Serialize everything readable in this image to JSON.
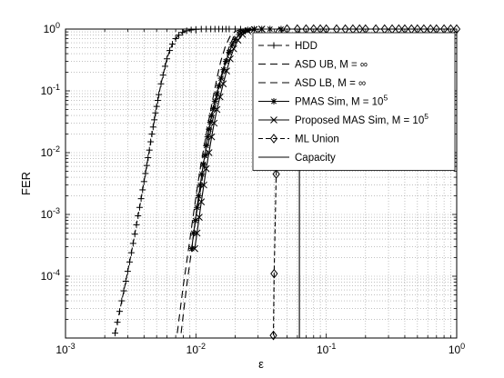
{
  "chart_data": {
    "type": "line",
    "title": "",
    "xlabel": "ε",
    "ylabel": "FER",
    "xscale": "log",
    "yscale": "log",
    "xlim": [
      0.001,
      1
    ],
    "ylim": [
      1e-05,
      1
    ],
    "grid": true,
    "legend_position": "top-right",
    "x_ticks": [
      {
        "value": 0.001,
        "base": "10",
        "exp": "-3"
      },
      {
        "value": 0.01,
        "base": "10",
        "exp": "-2"
      },
      {
        "value": 0.1,
        "base": "10",
        "exp": "-1"
      },
      {
        "value": 1,
        "base": "10",
        "exp": "0"
      }
    ],
    "y_ticks": [
      {
        "value": 0.0001,
        "base": "10",
        "exp": "-4"
      },
      {
        "value": 0.001,
        "base": "10",
        "exp": "-3"
      },
      {
        "value": 0.01,
        "base": "10",
        "exp": "-2"
      },
      {
        "value": 0.1,
        "base": "10",
        "exp": "-1"
      },
      {
        "value": 1,
        "base": "10",
        "exp": "0"
      }
    ],
    "series": [
      {
        "name": "HDD",
        "color": "#000000",
        "dash": "6,4",
        "marker": "plus",
        "points": [
          [
            0.0024,
            1.2e-05
          ],
          [
            0.0025,
            1.8e-05
          ],
          [
            0.0026,
            2.7e-05
          ],
          [
            0.0027,
            4e-05
          ],
          [
            0.0028,
            5.8e-05
          ],
          [
            0.0029,
            8.3e-05
          ],
          [
            0.003,
            0.00012
          ],
          [
            0.0031,
            0.00017
          ],
          [
            0.0032,
            0.00024
          ],
          [
            0.0033,
            0.00034
          ],
          [
            0.0034,
            0.00048
          ],
          [
            0.0035,
            0.00068
          ],
          [
            0.0036,
            0.00095
          ],
          [
            0.0037,
            0.0013
          ],
          [
            0.0038,
            0.0018
          ],
          [
            0.0039,
            0.0025
          ],
          [
            0.004,
            0.0034
          ],
          [
            0.0041,
            0.0046
          ],
          [
            0.0042,
            0.0062
          ],
          [
            0.0043,
            0.0083
          ],
          [
            0.0044,
            0.011
          ],
          [
            0.0045,
            0.015
          ],
          [
            0.0046,
            0.02
          ],
          [
            0.0047,
            0.026
          ],
          [
            0.0048,
            0.034
          ],
          [
            0.0049,
            0.044
          ],
          [
            0.005,
            0.056
          ],
          [
            0.0051,
            0.07
          ],
          [
            0.0052,
            0.087
          ],
          [
            0.0054,
            0.13
          ],
          [
            0.0056,
            0.18
          ],
          [
            0.0058,
            0.25
          ],
          [
            0.006,
            0.33
          ],
          [
            0.0063,
            0.45
          ],
          [
            0.0066,
            0.57
          ],
          [
            0.007,
            0.7
          ],
          [
            0.0074,
            0.8
          ],
          [
            0.0079,
            0.88
          ],
          [
            0.0085,
            0.94
          ],
          [
            0.0092,
            0.97
          ],
          [
            0.01,
            0.99
          ],
          [
            0.011,
            1
          ],
          [
            0.012,
            1
          ],
          [
            0.013,
            1
          ],
          [
            0.014,
            1
          ],
          [
            0.015,
            1
          ],
          [
            0.016,
            1
          ],
          [
            0.017,
            1
          ],
          [
            0.018,
            1
          ],
          [
            0.02,
            1
          ],
          [
            0.022,
            1
          ]
        ]
      },
      {
        "name": "ASD UB, M = ∞",
        "color": "#000000",
        "dash": "8,5",
        "marker": "none",
        "points": [
          [
            0.0072,
            1.2e-05
          ],
          [
            0.0076,
            3e-05
          ],
          [
            0.008,
            7e-05
          ],
          [
            0.0085,
            0.00017
          ],
          [
            0.009,
            0.0004
          ],
          [
            0.0095,
            0.0009
          ],
          [
            0.01,
            0.0019
          ],
          [
            0.0105,
            0.0038
          ],
          [
            0.011,
            0.007
          ],
          [
            0.0118,
            0.016
          ],
          [
            0.0126,
            0.035
          ],
          [
            0.0135,
            0.075
          ],
          [
            0.0145,
            0.16
          ],
          [
            0.0155,
            0.3
          ],
          [
            0.0168,
            0.52
          ],
          [
            0.0182,
            0.75
          ],
          [
            0.02,
            0.92
          ],
          [
            0.022,
            0.98
          ],
          [
            0.025,
            1
          ],
          [
            0.03,
            1
          ]
        ]
      },
      {
        "name": "ASD LB, M = ∞",
        "color": "#000000",
        "dash": "8,5",
        "marker": "none",
        "points": [
          [
            0.0077,
            1.2e-05
          ],
          [
            0.0081,
            3e-05
          ],
          [
            0.0085,
            7e-05
          ],
          [
            0.009,
            0.00017
          ],
          [
            0.0095,
            0.0004
          ],
          [
            0.01,
            0.0009
          ],
          [
            0.0106,
            0.0019
          ],
          [
            0.0112,
            0.0038
          ],
          [
            0.0118,
            0.007
          ],
          [
            0.0126,
            0.016
          ],
          [
            0.0135,
            0.035
          ],
          [
            0.0145,
            0.075
          ],
          [
            0.0155,
            0.16
          ],
          [
            0.0167,
            0.3
          ],
          [
            0.018,
            0.52
          ],
          [
            0.0195,
            0.75
          ],
          [
            0.0213,
            0.92
          ],
          [
            0.0235,
            0.98
          ],
          [
            0.027,
            1
          ],
          [
            0.032,
            1
          ]
        ]
      },
      {
        "name": "PMAS Sim, M = 10",
        "name_exp": "5",
        "color": "#000000",
        "dash": "",
        "marker": "star",
        "points": [
          [
            0.0093,
            0.00028
          ],
          [
            0.0096,
            0.0005
          ],
          [
            0.0099,
            0.0008
          ],
          [
            0.0102,
            0.0013
          ],
          [
            0.0105,
            0.002
          ],
          [
            0.0108,
            0.003
          ],
          [
            0.0111,
            0.0045
          ],
          [
            0.0114,
            0.0065
          ],
          [
            0.0117,
            0.009
          ],
          [
            0.012,
            0.013
          ],
          [
            0.0123,
            0.018
          ],
          [
            0.0126,
            0.024
          ],
          [
            0.0129,
            0.031
          ],
          [
            0.0132,
            0.04
          ],
          [
            0.0136,
            0.052
          ],
          [
            0.014,
            0.068
          ],
          [
            0.0145,
            0.09
          ],
          [
            0.015,
            0.12
          ],
          [
            0.0156,
            0.16
          ],
          [
            0.0163,
            0.22
          ],
          [
            0.017,
            0.3
          ],
          [
            0.018,
            0.42
          ],
          [
            0.019,
            0.56
          ],
          [
            0.02,
            0.68
          ],
          [
            0.0215,
            0.82
          ],
          [
            0.023,
            0.91
          ],
          [
            0.025,
            0.97
          ],
          [
            0.028,
            1
          ],
          [
            0.032,
            1
          ],
          [
            0.037,
            1
          ],
          [
            0.045,
            1
          ]
        ]
      },
      {
        "name": "Proposed MAS Sim, M = 10",
        "name_exp": "5",
        "color": "#000000",
        "dash": "",
        "marker": "cross",
        "points": [
          [
            0.0098,
            0.00028
          ],
          [
            0.0102,
            0.0005
          ],
          [
            0.0106,
            0.0009
          ],
          [
            0.011,
            0.0016
          ],
          [
            0.0115,
            0.003
          ],
          [
            0.012,
            0.0055
          ],
          [
            0.0126,
            0.01
          ],
          [
            0.0132,
            0.018
          ],
          [
            0.0138,
            0.03
          ],
          [
            0.0145,
            0.05
          ],
          [
            0.0153,
            0.08
          ],
          [
            0.0162,
            0.13
          ],
          [
            0.0172,
            0.21
          ],
          [
            0.0183,
            0.33
          ],
          [
            0.0195,
            0.48
          ],
          [
            0.021,
            0.66
          ],
          [
            0.0228,
            0.82
          ],
          [
            0.025,
            0.93
          ],
          [
            0.028,
            0.985
          ],
          [
            0.032,
            1
          ]
        ]
      },
      {
        "name": "ML Union",
        "color": "#000000",
        "dash": "5,3",
        "marker": "diamond",
        "points": [
          [
            0.0393,
            1.1e-05
          ],
          [
            0.0398,
            0.00011
          ],
          [
            0.0413,
            0.0045
          ],
          [
            0.0433,
            0.9
          ],
          [
            0.05,
            1
          ],
          [
            0.06,
            1
          ],
          [
            0.07,
            1
          ],
          [
            0.08,
            1
          ],
          [
            0.09,
            1
          ],
          [
            0.1,
            1
          ],
          [
            0.12,
            1
          ],
          [
            0.14,
            1
          ],
          [
            0.16,
            1
          ],
          [
            0.18,
            1
          ],
          [
            0.2,
            1
          ],
          [
            0.24,
            1
          ],
          [
            0.28,
            1
          ],
          [
            0.32,
            1
          ],
          [
            0.36,
            1
          ],
          [
            0.4,
            1
          ],
          [
            0.45,
            1
          ],
          [
            0.5,
            1
          ],
          [
            0.56,
            1
          ],
          [
            0.63,
            1
          ],
          [
            0.7,
            1
          ],
          [
            0.8,
            1
          ],
          [
            0.9,
            1
          ],
          [
            1,
            1
          ]
        ]
      },
      {
        "name": "Capacity",
        "color": "#000000",
        "dash": "",
        "marker": "none",
        "points": [
          [
            0.0622,
            1e-05
          ],
          [
            0.0622,
            1
          ]
        ]
      }
    ]
  }
}
